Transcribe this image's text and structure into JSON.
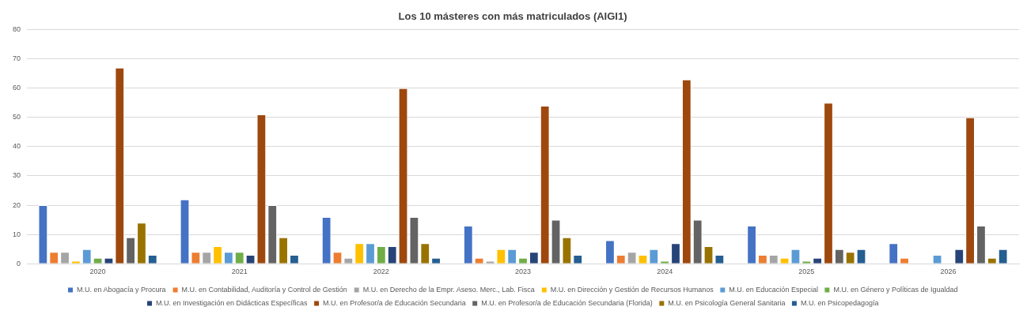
{
  "chart_data": {
    "type": "bar",
    "title": "Los 10 másteres con más matriculados (AIGI1)",
    "categories": [
      "2020",
      "2021",
      "2022",
      "2023",
      "2024",
      "2025",
      "2026"
    ],
    "series": [
      {
        "name": "M.U. en Abogacía y Procura",
        "color": "#4472c4",
        "values": [
          20,
          22,
          16,
          13,
          8,
          13,
          7
        ]
      },
      {
        "name": "M.U. en Contabilidad, Auditoría y Control de Gestión",
        "color": "#ed7d31",
        "values": [
          4,
          4,
          4,
          2,
          3,
          3,
          2
        ]
      },
      {
        "name": "M.U. en Derecho de la Empr. Aseso. Merc., Lab. Fisca",
        "color": "#a5a5a5",
        "values": [
          4,
          4,
          2,
          1,
          4,
          3,
          null
        ]
      },
      {
        "name": "M.U. en Dirección y Gestión de Recursos Humanos",
        "color": "#ffc000",
        "values": [
          1,
          6,
          7,
          5,
          3,
          2,
          null
        ]
      },
      {
        "name": "M.U. en Educación Especial",
        "color": "#5b9bd5",
        "values": [
          5,
          4,
          7,
          5,
          5,
          5,
          3
        ]
      },
      {
        "name": "M.U. en Género y Políticas de Igualdad",
        "color": "#70ad47",
        "values": [
          2,
          4,
          6,
          2,
          1,
          1,
          null
        ]
      },
      {
        "name": "M.U. en Investigación en Didácticas Específicas",
        "color": "#264478",
        "values": [
          2,
          3,
          6,
          4,
          7,
          2,
          5
        ]
      },
      {
        "name": "M.U. en Profesor/a de Educación Secundaria",
        "color": "#9e480e",
        "values": [
          67,
          51,
          60,
          54,
          63,
          55,
          50
        ]
      },
      {
        "name": "M.U. en Profesor/a de Educación Secundaria (Florida)",
        "color": "#636363",
        "values": [
          9,
          20,
          16,
          15,
          15,
          5,
          13
        ]
      },
      {
        "name": "M.U. en Psicología General Sanitaria",
        "color": "#997300",
        "values": [
          14,
          9,
          7,
          9,
          6,
          4,
          2
        ]
      },
      {
        "name": "M.U. en Psicopedagogía",
        "color": "#255e91",
        "values": [
          3,
          3,
          2,
          3,
          3,
          5,
          5
        ]
      }
    ],
    "ylim": [
      0,
      80
    ],
    "yticks": [
      0,
      10,
      20,
      30,
      40,
      50,
      60,
      70,
      80
    ],
    "grid": "y",
    "legend": "bottom"
  }
}
